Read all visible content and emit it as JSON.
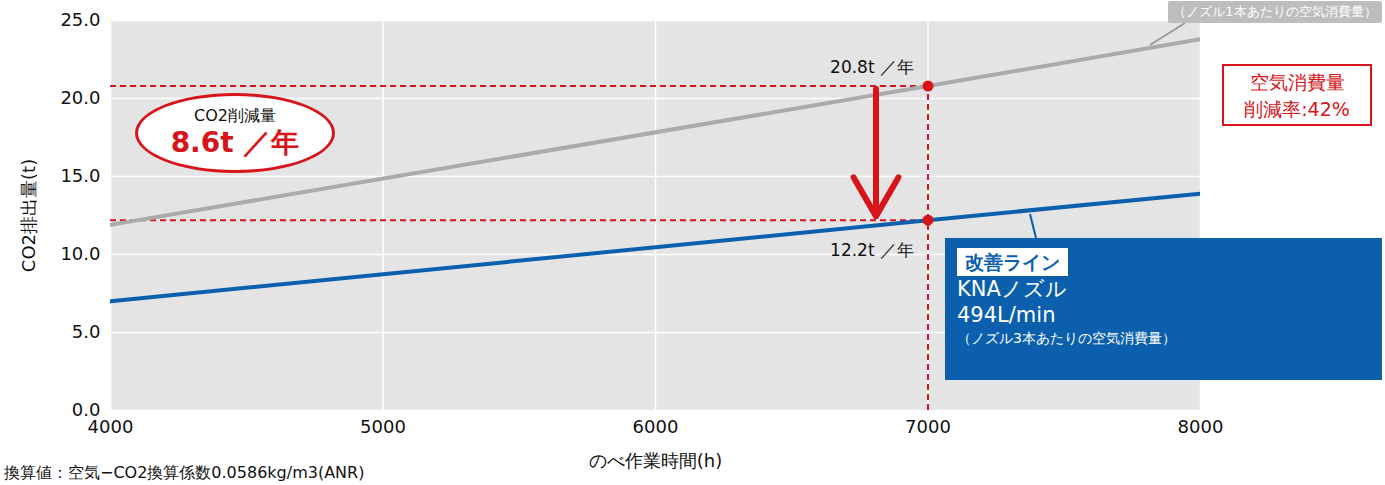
{
  "chart_data": {
    "type": "line",
    "x_label": "のべ作業時間(h)",
    "y_label": "CO2排出量(t)",
    "x": [
      4000,
      7000,
      8000
    ],
    "series": [
      {
        "color": "#ababab",
        "values": [
          11.9,
          20.8,
          23.8
        ],
        "note": "（ノズル1本あたりの空気消費量）"
      },
      {
        "name": "改善ライン",
        "color": "#0b5fad",
        "values": [
          7.0,
          12.2,
          13.9
        ],
        "note_lines": [
          "KNAノズル",
          "494L/min",
          "（ノズル3本あたりの空気消費量）"
        ]
      }
    ],
    "xlim": [
      4000,
      8000
    ],
    "xticks": [
      4000,
      5000,
      6000,
      7000,
      8000
    ],
    "ylim": [
      0,
      25
    ],
    "yticks": [
      {
        "value": 0,
        "label": "0.0"
      },
      {
        "value": 5,
        "label": "5.0"
      },
      {
        "value": 10,
        "label": "10.0"
      },
      {
        "value": 15,
        "label": "15.0"
      },
      {
        "value": 20,
        "label": "20.0"
      },
      {
        "value": 25,
        "label": "25.0"
      }
    ],
    "grid": true,
    "annotations": [
      {
        "x": 7000,
        "y": 20.8,
        "label": "20.8t ／年"
      },
      {
        "x": 7000,
        "y": 12.2,
        "label": "12.2t ／年"
      }
    ],
    "reduction": {
      "title": "CO2削減量",
      "label": "8.6t ／年"
    },
    "badge": {
      "title": "空気消費量",
      "label": "削減率:42%"
    },
    "footnote": "換算値：空気−CO2換算係数0.0586kg/m3(ANR)"
  }
}
